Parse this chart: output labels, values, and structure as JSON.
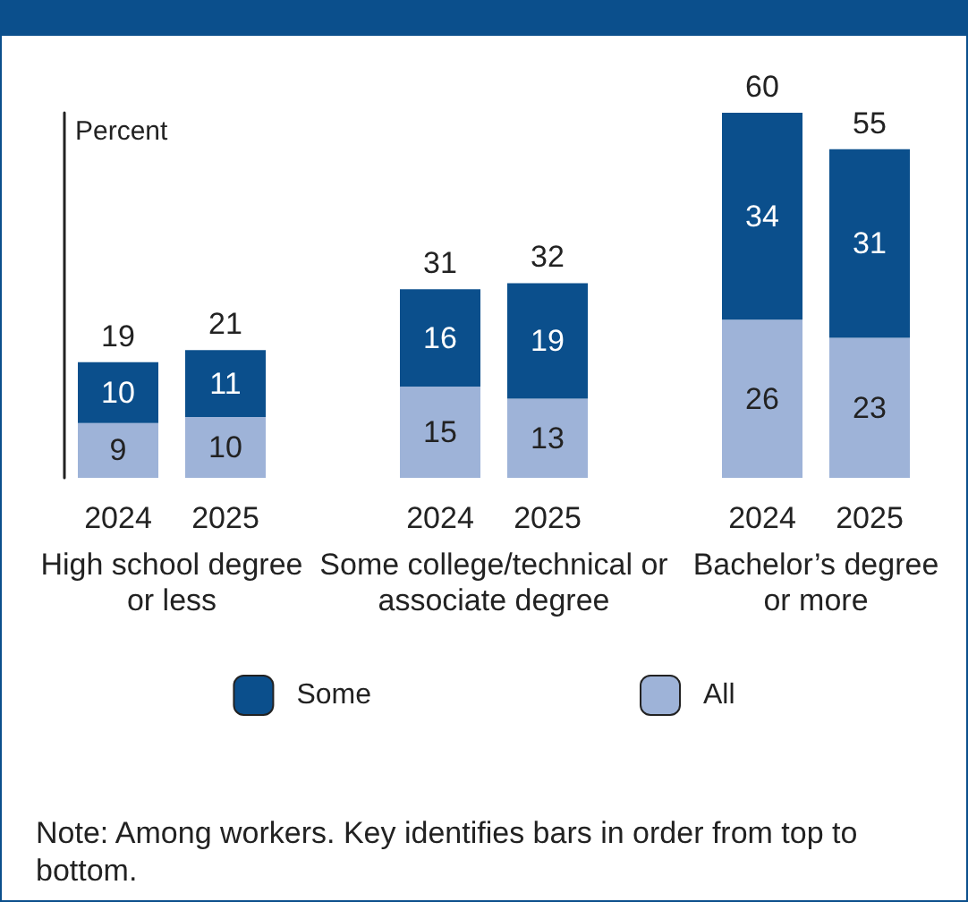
{
  "chart_data": {
    "type": "bar",
    "stacked": true,
    "ylabel": "Percent",
    "categories": [
      "2024",
      "2025",
      null,
      "2024",
      "2025",
      null,
      "2024",
      "2025"
    ],
    "series": [
      {
        "name": "All",
        "color": "#9eb3d8",
        "values": [
          9,
          10,
          null,
          15,
          13,
          null,
          26,
          23
        ]
      },
      {
        "name": "Some",
        "color": "#0b4f8c",
        "values": [
          10,
          11,
          null,
          16,
          19,
          null,
          34,
          31
        ]
      }
    ],
    "totals": [
      "19",
      "21",
      null,
      "31",
      "32",
      null,
      "60",
      "55"
    ],
    "data_labels": true,
    "legend": "bottom",
    "tick_labels": "x",
    "grid": false,
    "annotations": [
      "High school degree or less",
      "Some college/technical or associate degree",
      "Bachelor’s degree or more",
      "Note: Among workers. Key identifies bars in order from top to bottom."
    ]
  }
}
